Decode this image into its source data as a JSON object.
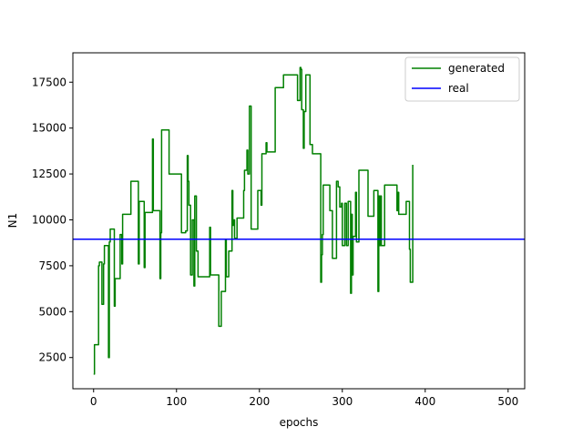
{
  "chart_data": {
    "type": "line",
    "title": "",
    "xlabel": "epochs",
    "ylabel": "N1",
    "xlim": [
      -25,
      520
    ],
    "ylim": [
      800,
      19100
    ],
    "xticks": [
      0,
      100,
      200,
      300,
      400,
      500
    ],
    "yticks": [
      2500,
      5000,
      7500,
      10000,
      12500,
      15000,
      17500
    ],
    "grid": false,
    "legend_position": "top-right",
    "series": [
      {
        "name": "generated",
        "color": "#008000",
        "step": true,
        "points": [
          [
            0,
            1600
          ],
          [
            1,
            3200
          ],
          [
            5,
            3200
          ],
          [
            6,
            7500
          ],
          [
            7,
            7700
          ],
          [
            9,
            7700
          ],
          [
            10,
            5400
          ],
          [
            11,
            5400
          ],
          [
            12,
            7600
          ],
          [
            13,
            8600
          ],
          [
            17,
            8600
          ],
          [
            18,
            2500
          ],
          [
            19,
            8800
          ],
          [
            20,
            9500
          ],
          [
            24,
            9500
          ],
          [
            25,
            5300
          ],
          [
            26,
            6800
          ],
          [
            31,
            6800
          ],
          [
            32,
            9200
          ],
          [
            33,
            9200
          ],
          [
            34,
            7600
          ],
          [
            35,
            10300
          ],
          [
            44,
            10300
          ],
          [
            45,
            12100
          ],
          [
            53,
            12100
          ],
          [
            54,
            7600
          ],
          [
            55,
            11000
          ],
          [
            60,
            11000
          ],
          [
            61,
            7400
          ],
          [
            62,
            10400
          ],
          [
            70,
            10400
          ],
          [
            71,
            14400
          ],
          [
            72,
            10500
          ],
          [
            79,
            10500
          ],
          [
            80,
            6800
          ],
          [
            81,
            9300
          ],
          [
            82,
            14900
          ],
          [
            90,
            14900
          ],
          [
            91,
            12500
          ],
          [
            105,
            12500
          ],
          [
            106,
            9300
          ],
          [
            110,
            9300
          ],
          [
            111,
            9400
          ],
          [
            113,
            13500
          ],
          [
            114,
            12100
          ],
          [
            115,
            10800
          ],
          [
            116,
            10800
          ],
          [
            117,
            7000
          ],
          [
            118,
            7000
          ],
          [
            119,
            10000
          ],
          [
            120,
            10000
          ],
          [
            121,
            6400
          ],
          [
            122,
            11300
          ],
          [
            123,
            11300
          ],
          [
            124,
            8300
          ],
          [
            125,
            8300
          ],
          [
            126,
            6900
          ],
          [
            139,
            6900
          ],
          [
            140,
            9600
          ],
          [
            141,
            7000
          ],
          [
            150,
            7000
          ],
          [
            151,
            4200
          ],
          [
            153,
            4200
          ],
          [
            154,
            6100
          ],
          [
            158,
            6100
          ],
          [
            159,
            8900
          ],
          [
            160,
            6900
          ],
          [
            162,
            6900
          ],
          [
            163,
            8300
          ],
          [
            166,
            8300
          ],
          [
            167,
            11600
          ],
          [
            168,
            9700
          ],
          [
            169,
            10000
          ],
          [
            170,
            9000
          ],
          [
            172,
            9000
          ],
          [
            173,
            10100
          ],
          [
            180,
            10100
          ],
          [
            181,
            11600
          ],
          [
            182,
            12700
          ],
          [
            184,
            12700
          ],
          [
            185,
            13800
          ],
          [
            186,
            12500
          ],
          [
            188,
            16200
          ],
          [
            189,
            16200
          ],
          [
            190,
            9500
          ],
          [
            197,
            9500
          ],
          [
            198,
            11600
          ],
          [
            201,
            11600
          ],
          [
            202,
            10800
          ],
          [
            203,
            13600
          ],
          [
            207,
            13600
          ],
          [
            208,
            14200
          ],
          [
            209,
            13700
          ],
          [
            218,
            13700
          ],
          [
            219,
            17200
          ],
          [
            228,
            17200
          ],
          [
            229,
            17900
          ],
          [
            245,
            17900
          ],
          [
            246,
            16500
          ],
          [
            248,
            16500
          ],
          [
            249,
            18300
          ],
          [
            250,
            18200
          ],
          [
            251,
            16000
          ],
          [
            253,
            13900
          ],
          [
            254,
            15900
          ],
          [
            255,
            15900
          ],
          [
            256,
            17900
          ],
          [
            260,
            17900
          ],
          [
            261,
            14100
          ],
          [
            263,
            14100
          ],
          [
            264,
            13600
          ],
          [
            273,
            13600
          ],
          [
            274,
            6600
          ],
          [
            275,
            8100
          ],
          [
            276,
            9200
          ],
          [
            277,
            11900
          ],
          [
            284,
            11900
          ],
          [
            285,
            10500
          ],
          [
            287,
            10500
          ],
          [
            288,
            7900
          ],
          [
            292,
            7900
          ],
          [
            293,
            12100
          ],
          [
            295,
            11800
          ],
          [
            296,
            11800
          ],
          [
            297,
            10700
          ],
          [
            298,
            10700
          ],
          [
            299,
            10900
          ],
          [
            300,
            8600
          ],
          [
            302,
            8600
          ],
          [
            303,
            10900
          ],
          [
            304,
            10900
          ],
          [
            305,
            8600
          ],
          [
            307,
            11000
          ],
          [
            309,
            11000
          ],
          [
            310,
            6000
          ],
          [
            311,
            10300
          ],
          [
            312,
            7000
          ],
          [
            313,
            9100
          ],
          [
            315,
            9100
          ],
          [
            316,
            11500
          ],
          [
            317,
            8800
          ],
          [
            320,
            12700
          ],
          [
            330,
            12700
          ],
          [
            331,
            10200
          ],
          [
            337,
            10200
          ],
          [
            338,
            11600
          ],
          [
            342,
            11600
          ],
          [
            343,
            6100
          ],
          [
            344,
            11300
          ],
          [
            345,
            8600
          ],
          [
            346,
            11300
          ],
          [
            347,
            8600
          ],
          [
            350,
            8600
          ],
          [
            351,
            11900
          ],
          [
            365,
            11900
          ],
          [
            366,
            10500
          ],
          [
            367,
            11500
          ],
          [
            368,
            10300
          ],
          [
            376,
            10300
          ],
          [
            377,
            11000
          ],
          [
            380,
            11000
          ],
          [
            381,
            8400
          ],
          [
            382,
            6600
          ],
          [
            384,
            6600
          ],
          [
            385,
            13000
          ]
        ]
      },
      {
        "name": "real",
        "color": "#0000ff",
        "step": false,
        "points": [
          [
            -25,
            8950
          ],
          [
            520,
            8950
          ]
        ]
      }
    ]
  }
}
